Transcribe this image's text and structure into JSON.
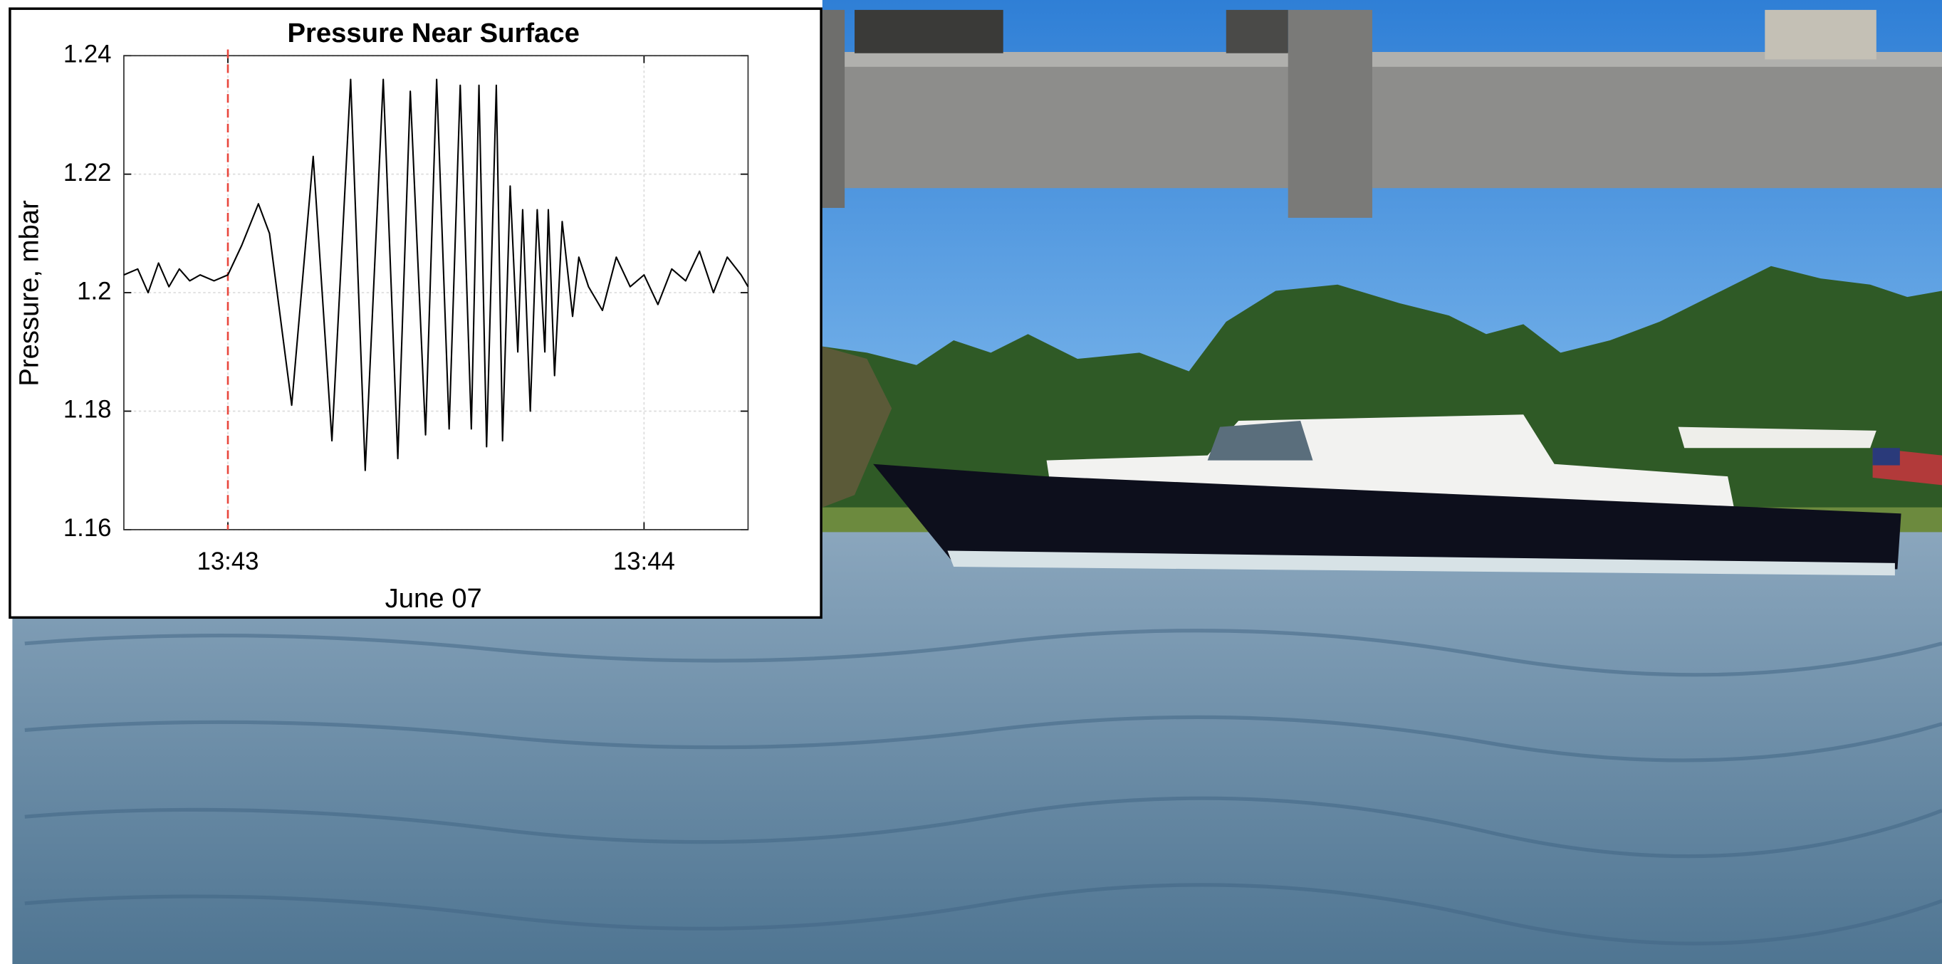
{
  "chart_data": {
    "type": "line",
    "title": "Pressure Near Surface",
    "x_label": "June 07",
    "y_label": "Pressure, mbar",
    "x": [
      "13:42:45",
      "13:42:47",
      "13:42:48.5",
      "13:42:50",
      "13:42:51.5",
      "13:42:53",
      "13:42:54.5",
      "13:42:56",
      "13:42:58",
      "13:43:00",
      "13:43:02",
      "13:43:04.4",
      "13:43:06",
      "13:43:09.2",
      "13:43:12.3",
      "13:43:15",
      "13:43:17.7",
      "13:43:19.8",
      "13:43:22.4",
      "13:43:24.5",
      "13:43:26.3",
      "13:43:28.5",
      "13:43:30.1",
      "13:43:31.9",
      "13:43:33.5",
      "13:43:35.1",
      "13:43:36.2",
      "13:43:37.3",
      "13:43:38.7",
      "13:43:39.6",
      "13:43:40.7",
      "13:43:41.8",
      "13:43:42.5",
      "13:43:43.6",
      "13:43:44.6",
      "13:43:45.7",
      "13:43:46.2",
      "13:43:47.1",
      "13:43:48.2",
      "13:43:49.7",
      "13:43:50.6",
      "13:43:52",
      "13:43:54",
      "13:43:56",
      "13:43:58",
      "13:44:00",
      "13:44:02",
      "13:44:04",
      "13:44:06",
      "13:44:08",
      "13:44:10",
      "13:44:12",
      "13:44:14",
      "13:44:15"
    ],
    "values": [
      1.203,
      1.204,
      1.2,
      1.205,
      1.201,
      1.204,
      1.202,
      1.203,
      1.202,
      1.203,
      1.208,
      1.215,
      1.21,
      1.181,
      1.223,
      1.175,
      1.236,
      1.17,
      1.236,
      1.172,
      1.234,
      1.176,
      1.236,
      1.177,
      1.235,
      1.177,
      1.235,
      1.174,
      1.235,
      1.175,
      1.218,
      1.19,
      1.214,
      1.18,
      1.214,
      1.19,
      1.214,
      1.186,
      1.212,
      1.196,
      1.206,
      1.201,
      1.197,
      1.206,
      1.201,
      1.203,
      1.198,
      1.204,
      1.202,
      1.207,
      1.2,
      1.206,
      1.203,
      1.201
    ],
    "color": "#000000",
    "xlim": [
      "13:42:45",
      "13:44:15"
    ],
    "xticks": [
      {
        "value": "13:43:00",
        "label": "13:43"
      },
      {
        "value": "13:44:00",
        "label": "13:44"
      }
    ],
    "ylim": [
      1.16,
      1.24
    ],
    "yticks": [
      1.16,
      1.18,
      1.2,
      1.22,
      1.24
    ],
    "grid": true,
    "vline": "13:43:00",
    "vline_color": "#e8463c"
  }
}
